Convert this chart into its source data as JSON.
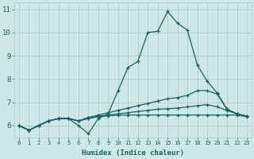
{
  "title": "",
  "xlabel": "Humidex (Indice chaleur)",
  "ylabel": "",
  "bg_color": "#cce8e8",
  "grid_color": "#b8c8c8",
  "line_color": "#1a6060",
  "tick_color": "#1a6060",
  "xlim": [
    -0.5,
    23.5
  ],
  "ylim": [
    5.5,
    11.3
  ],
  "xticks": [
    0,
    1,
    2,
    3,
    4,
    5,
    6,
    7,
    8,
    9,
    10,
    11,
    12,
    13,
    14,
    15,
    16,
    17,
    18,
    19,
    20,
    21,
    22,
    23
  ],
  "yticks": [
    6,
    7,
    8,
    9,
    10,
    11
  ],
  "series": [
    [
      6.0,
      5.8,
      6.0,
      6.2,
      6.3,
      6.3,
      6.0,
      5.65,
      6.3,
      6.5,
      7.5,
      8.5,
      8.75,
      10.0,
      10.05,
      10.9,
      10.4,
      10.1,
      8.6,
      7.9,
      7.4,
      6.7,
      6.5,
      6.4
    ],
    [
      6.0,
      5.8,
      6.0,
      6.2,
      6.3,
      6.3,
      6.2,
      6.35,
      6.45,
      6.55,
      6.65,
      6.75,
      6.85,
      6.95,
      7.05,
      7.15,
      7.2,
      7.3,
      7.5,
      7.5,
      7.35,
      6.7,
      6.5,
      6.4
    ],
    [
      6.0,
      5.8,
      6.0,
      6.2,
      6.3,
      6.3,
      6.2,
      6.3,
      6.4,
      6.45,
      6.5,
      6.55,
      6.6,
      6.65,
      6.7,
      6.72,
      6.75,
      6.8,
      6.85,
      6.9,
      6.8,
      6.65,
      6.5,
      6.4
    ],
    [
      6.0,
      5.8,
      6.0,
      6.2,
      6.3,
      6.3,
      6.2,
      6.3,
      6.38,
      6.42,
      6.44,
      6.45,
      6.45,
      6.45,
      6.45,
      6.45,
      6.45,
      6.45,
      6.45,
      6.45,
      6.45,
      6.45,
      6.45,
      6.38
    ]
  ]
}
